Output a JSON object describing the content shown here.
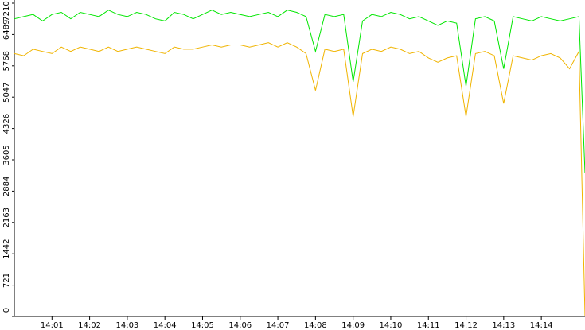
{
  "chart_data": {
    "type": "line",
    "x": [
      0,
      0.25,
      0.5,
      0.75,
      1,
      1.25,
      1.5,
      1.75,
      2,
      2.25,
      2.5,
      2.75,
      3,
      3.25,
      3.5,
      3.75,
      4,
      4.25,
      4.5,
      4.75,
      5,
      5.25,
      5.5,
      5.75,
      6,
      6.25,
      6.5,
      6.75,
      7,
      7.25,
      7.5,
      7.75,
      8,
      8.25,
      8.5,
      8.75,
      9,
      9.25,
      9.5,
      9.75,
      10,
      10.25,
      10.5,
      10.75,
      11,
      11.25,
      11.5,
      11.75,
      12,
      12.25,
      12.5,
      12.75,
      13,
      13.25,
      13.5,
      13.75,
      14,
      14.25,
      14.5,
      14.75,
      15,
      15.16
    ],
    "series": [
      {
        "color": "#00e600",
        "values": [
          6850,
          6900,
          6950,
          6800,
          6950,
          7000,
          6850,
          7000,
          6950,
          6900,
          7050,
          6950,
          6900,
          7000,
          6950,
          6850,
          6800,
          7000,
          6950,
          6850,
          6950,
          7050,
          6950,
          7000,
          6950,
          6900,
          6950,
          7000,
          6900,
          7050,
          7000,
          6900,
          6100,
          6950,
          6900,
          6950,
          5400,
          6800,
          6950,
          6900,
          7000,
          6950,
          6850,
          6900,
          6800,
          6700,
          6800,
          6750,
          5300,
          6850,
          6900,
          6800,
          5700,
          6900,
          6850,
          6800,
          6900,
          6850,
          6800,
          6850,
          6900,
          3300
        ]
      },
      {
        "color": "#f0b400",
        "values": [
          6050,
          6000,
          6150,
          6100,
          6050,
          6200,
          6100,
          6200,
          6150,
          6100,
          6200,
          6100,
          6150,
          6200,
          6150,
          6100,
          6050,
          6200,
          6150,
          6150,
          6200,
          6250,
          6200,
          6250,
          6250,
          6200,
          6250,
          6300,
          6200,
          6300,
          6200,
          6050,
          5200,
          6150,
          6100,
          6150,
          4600,
          6050,
          6150,
          6100,
          6200,
          6150,
          6050,
          6100,
          5950,
          5850,
          5950,
          6000,
          4600,
          6050,
          6100,
          6000,
          4900,
          6000,
          5950,
          5900,
          6000,
          6050,
          5950,
          5700,
          6100,
          0
        ]
      }
    ],
    "xlim": [
      0,
      15.16
    ],
    "xticks": [
      {
        "value": 1,
        "label": "14:01"
      },
      {
        "value": 2,
        "label": "14:02"
      },
      {
        "value": 3,
        "label": "14:03"
      },
      {
        "value": 4,
        "label": "14:04"
      },
      {
        "value": 5,
        "label": "14:05"
      },
      {
        "value": 6,
        "label": "14:06"
      },
      {
        "value": 7,
        "label": "14:07"
      },
      {
        "value": 8,
        "label": "14:08"
      },
      {
        "value": 9,
        "label": "14:09"
      },
      {
        "value": 10,
        "label": "14:10"
      },
      {
        "value": 11,
        "label": "14:11"
      },
      {
        "value": 12,
        "label": "14:12"
      },
      {
        "value": 13,
        "label": "14:13"
      },
      {
        "value": 14,
        "label": "14:14"
      }
    ],
    "ylim": [
      0,
      7210
    ],
    "yticks": [
      0,
      721,
      1442,
      2163,
      2884,
      3605,
      4326,
      5047,
      5768,
      6489,
      7210
    ]
  }
}
